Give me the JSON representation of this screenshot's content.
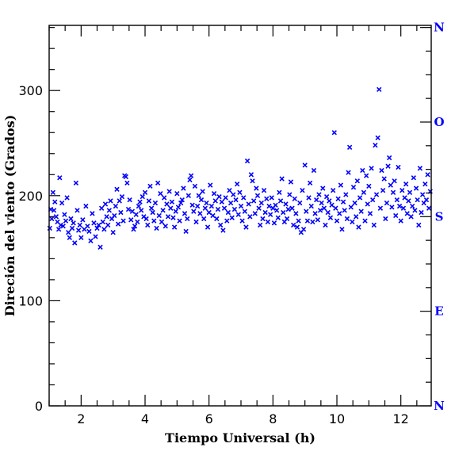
{
  "chart_data": {
    "type": "scatter",
    "xlabel": "Tiempo Universal (h)",
    "ylabel": "Direción del viento (Grados)",
    "xlim": [
      1.0,
      12.95
    ],
    "ylim": [
      0,
      362
    ],
    "x_ticks": [
      2,
      4,
      6,
      8,
      10,
      12
    ],
    "y_ticks": [
      0,
      100,
      200,
      300
    ],
    "right_axis_labels": [
      {
        "label": "N",
        "value": 0
      },
      {
        "label": "E",
        "value": 90
      },
      {
        "label": "S",
        "value": 180
      },
      {
        "label": "O",
        "value": 270
      },
      {
        "label": "N",
        "value": 360
      }
    ],
    "marker": "x",
    "colors": {
      "points": "#0000ff",
      "right_labels": "#0000ff",
      "axes": "#000000"
    },
    "grid": false,
    "series": [
      {
        "points": [
          [
            1.02,
            169
          ],
          [
            1.05,
            187
          ],
          [
            1.08,
            178
          ],
          [
            1.12,
            203
          ],
          [
            1.15,
            186
          ],
          [
            1.18,
            194
          ],
          [
            1.22,
            180
          ],
          [
            1.26,
            175
          ],
          [
            1.3,
            168
          ],
          [
            1.33,
            217
          ],
          [
            1.36,
            172
          ],
          [
            1.4,
            193
          ],
          [
            1.44,
            171
          ],
          [
            1.48,
            182
          ],
          [
            1.52,
            176
          ],
          [
            1.56,
            198
          ],
          [
            1.6,
            165
          ],
          [
            1.64,
            160
          ],
          [
            1.68,
            178
          ],
          [
            1.72,
            169
          ],
          [
            1.76,
            174
          ],
          [
            1.8,
            155
          ],
          [
            1.84,
            212
          ],
          [
            1.88,
            186
          ],
          [
            1.92,
            167
          ],
          [
            1.96,
            172
          ],
          [
            2.0,
            160
          ],
          [
            2.05,
            177
          ],
          [
            2.1,
            168
          ],
          [
            2.15,
            190
          ],
          [
            2.2,
            171
          ],
          [
            2.25,
            166
          ],
          [
            2.3,
            157
          ],
          [
            2.35,
            183
          ],
          [
            2.4,
            174
          ],
          [
            2.45,
            161
          ],
          [
            2.5,
            169
          ],
          [
            2.55,
            172
          ],
          [
            2.6,
            151
          ],
          [
            2.64,
            188
          ],
          [
            2.68,
            175
          ],
          [
            2.72,
            168
          ],
          [
            2.76,
            192
          ],
          [
            2.8,
            180
          ],
          [
            2.84,
            172
          ],
          [
            2.88,
            186
          ],
          [
            2.92,
            195
          ],
          [
            2.96,
            178
          ],
          [
            3.0,
            165
          ],
          [
            3.04,
            181
          ],
          [
            3.08,
            190
          ],
          [
            3.12,
            206
          ],
          [
            3.16,
            173
          ],
          [
            3.2,
            195
          ],
          [
            3.24,
            184
          ],
          [
            3.28,
            199
          ],
          [
            3.32,
            176
          ],
          [
            3.36,
            219
          ],
          [
            3.4,
            218
          ],
          [
            3.44,
            212
          ],
          [
            3.48,
            187
          ],
          [
            3.52,
            196
          ],
          [
            3.56,
            177
          ],
          [
            3.6,
            185
          ],
          [
            3.64,
            168
          ],
          [
            3.68,
            171
          ],
          [
            3.72,
            182
          ],
          [
            3.76,
            175
          ],
          [
            3.8,
            190
          ],
          [
            3.84,
            194
          ],
          [
            3.88,
            186
          ],
          [
            3.92,
            199
          ],
          [
            3.96,
            180
          ],
          [
            4.0,
            203
          ],
          [
            4.04,
            178
          ],
          [
            4.08,
            172
          ],
          [
            4.12,
            195
          ],
          [
            4.16,
            209
          ],
          [
            4.2,
            188
          ],
          [
            4.24,
            184
          ],
          [
            4.28,
            176
          ],
          [
            4.32,
            193
          ],
          [
            4.36,
            169
          ],
          [
            4.4,
            212
          ],
          [
            4.44,
            181
          ],
          [
            4.48,
            202
          ],
          [
            4.52,
            175
          ],
          [
            4.56,
            186
          ],
          [
            4.6,
            198
          ],
          [
            4.64,
            171
          ],
          [
            4.68,
            192
          ],
          [
            4.72,
            180
          ],
          [
            4.76,
            204
          ],
          [
            4.8,
            188
          ],
          [
            4.84,
            194
          ],
          [
            4.88,
            179
          ],
          [
            4.92,
            170
          ],
          [
            4.96,
            185
          ],
          [
            5.0,
            202
          ],
          [
            5.04,
            189
          ],
          [
            5.08,
            176
          ],
          [
            5.12,
            193
          ],
          [
            5.16,
            196
          ],
          [
            5.2,
            207
          ],
          [
            5.24,
            183
          ],
          [
            5.28,
            166
          ],
          [
            5.32,
            178
          ],
          [
            5.36,
            200
          ],
          [
            5.4,
            215
          ],
          [
            5.44,
            219
          ],
          [
            5.48,
            191
          ],
          [
            5.52,
            185
          ],
          [
            5.56,
            209
          ],
          [
            5.6,
            175
          ],
          [
            5.64,
            190
          ],
          [
            5.68,
            200
          ],
          [
            5.72,
            183
          ],
          [
            5.76,
            196
          ],
          [
            5.8,
            204
          ],
          [
            5.84,
            178
          ],
          [
            5.88,
            188
          ],
          [
            5.92,
            193
          ],
          [
            5.96,
            170
          ],
          [
            6.0,
            184
          ],
          [
            6.04,
            210
          ],
          [
            6.08,
            190
          ],
          [
            6.12,
            181
          ],
          [
            6.16,
            202
          ],
          [
            6.2,
            195
          ],
          [
            6.24,
            178
          ],
          [
            6.28,
            187
          ],
          [
            6.32,
            199
          ],
          [
            6.36,
            172
          ],
          [
            6.4,
            194
          ],
          [
            6.44,
            167
          ],
          [
            6.48,
            188
          ],
          [
            6.52,
            198
          ],
          [
            6.56,
            176
          ],
          [
            6.6,
            184
          ],
          [
            6.64,
            205
          ],
          [
            6.68,
            193
          ],
          [
            6.72,
            179
          ],
          [
            6.76,
            201
          ],
          [
            6.8,
            187
          ],
          [
            6.84,
            196
          ],
          [
            6.88,
            211
          ],
          [
            6.92,
            182
          ],
          [
            6.96,
            203
          ],
          [
            7.0,
            190
          ],
          [
            7.04,
            176
          ],
          [
            7.08,
            198
          ],
          [
            7.12,
            185
          ],
          [
            7.16,
            170
          ],
          [
            7.2,
            233
          ],
          [
            7.24,
            192
          ],
          [
            7.28,
            180
          ],
          [
            7.32,
            220
          ],
          [
            7.36,
            214
          ],
          [
            7.4,
            195
          ],
          [
            7.44,
            183
          ],
          [
            7.48,
            207
          ],
          [
            7.52,
            200
          ],
          [
            7.56,
            188
          ],
          [
            7.6,
            172
          ],
          [
            7.64,
            193
          ],
          [
            7.68,
            178
          ],
          [
            7.72,
            205
          ],
          [
            7.76,
            184
          ],
          [
            7.8,
            197
          ],
          [
            7.84,
            175
          ],
          [
            7.88,
            190
          ],
          [
            7.92,
            182
          ],
          [
            7.96,
            198
          ],
          [
            8.0,
            188
          ],
          [
            8.04,
            174
          ],
          [
            8.08,
            191
          ],
          [
            8.12,
            186
          ],
          [
            8.16,
            179
          ],
          [
            8.2,
            203
          ],
          [
            8.24,
            195
          ],
          [
            8.28,
            216
          ],
          [
            8.32,
            184
          ],
          [
            8.36,
            175
          ],
          [
            8.4,
            192
          ],
          [
            8.44,
            178
          ],
          [
            8.48,
            187
          ],
          [
            8.52,
            201
          ],
          [
            8.56,
            213
          ],
          [
            8.6,
            188
          ],
          [
            8.64,
            172
          ],
          [
            8.68,
            197
          ],
          [
            8.72,
            183
          ],
          [
            8.76,
            170
          ],
          [
            8.8,
            176
          ],
          [
            8.84,
            193
          ],
          [
            8.88,
            165
          ],
          [
            8.92,
            205
          ],
          [
            8.96,
            168
          ],
          [
            9.0,
            229
          ],
          [
            9.04,
            185
          ],
          [
            9.08,
            176
          ],
          [
            9.12,
            198
          ],
          [
            9.16,
            212
          ],
          [
            9.2,
            190
          ],
          [
            9.24,
            175
          ],
          [
            9.28,
            224
          ],
          [
            9.32,
            183
          ],
          [
            9.36,
            196
          ],
          [
            9.4,
            177
          ],
          [
            9.44,
            201
          ],
          [
            9.48,
            186
          ],
          [
            9.52,
            193
          ],
          [
            9.56,
            207
          ],
          [
            9.6,
            188
          ],
          [
            9.64,
            172
          ],
          [
            9.68,
            199
          ],
          [
            9.72,
            184
          ],
          [
            9.76,
            195
          ],
          [
            9.8,
            179
          ],
          [
            9.84,
            191
          ],
          [
            9.88,
            205
          ],
          [
            9.92,
            260
          ],
          [
            9.96,
            188
          ],
          [
            10.0,
            176
          ],
          [
            10.04,
            197
          ],
          [
            10.08,
            183
          ],
          [
            10.12,
            210
          ],
          [
            10.16,
            168
          ],
          [
            10.2,
            194
          ],
          [
            10.24,
            186
          ],
          [
            10.28,
            201
          ],
          [
            10.32,
            178
          ],
          [
            10.36,
            222
          ],
          [
            10.4,
            246
          ],
          [
            10.44,
            189
          ],
          [
            10.48,
            175
          ],
          [
            10.52,
            208
          ],
          [
            10.56,
            193
          ],
          [
            10.6,
            180
          ],
          [
            10.64,
            214
          ],
          [
            10.68,
            170
          ],
          [
            10.72,
            198
          ],
          [
            10.76,
            185
          ],
          [
            10.8,
            224
          ],
          [
            10.84,
            203
          ],
          [
            10.88,
            176
          ],
          [
            10.92,
            219
          ],
          [
            10.96,
            192
          ],
          [
            11.0,
            209
          ],
          [
            11.04,
            183
          ],
          [
            11.08,
            226
          ],
          [
            11.12,
            196
          ],
          [
            11.16,
            172
          ],
          [
            11.2,
            248
          ],
          [
            11.24,
            201
          ],
          [
            11.28,
            255
          ],
          [
            11.32,
            301
          ],
          [
            11.36,
            188
          ],
          [
            11.4,
            224
          ],
          [
            11.44,
            205
          ],
          [
            11.48,
            216
          ],
          [
            11.52,
            178
          ],
          [
            11.56,
            193
          ],
          [
            11.6,
            228
          ],
          [
            11.64,
            236
          ],
          [
            11.68,
            210
          ],
          [
            11.72,
            189
          ],
          [
            11.76,
            203
          ],
          [
            11.8,
            214
          ],
          [
            11.84,
            181
          ],
          [
            11.88,
            196
          ],
          [
            11.92,
            227
          ],
          [
            11.96,
            190
          ],
          [
            12.0,
            176
          ],
          [
            12.04,
            205
          ],
          [
            12.08,
            188
          ],
          [
            12.12,
            198
          ],
          [
            12.16,
            211
          ],
          [
            12.2,
            183
          ],
          [
            12.24,
            195
          ],
          [
            12.28,
            203
          ],
          [
            12.32,
            180
          ],
          [
            12.36,
            190
          ],
          [
            12.4,
            217
          ],
          [
            12.44,
            186
          ],
          [
            12.48,
            207
          ],
          [
            12.52,
            196
          ],
          [
            12.56,
            172
          ],
          [
            12.6,
            226
          ],
          [
            12.64,
            184
          ],
          [
            12.68,
            201
          ],
          [
            12.72,
            193
          ],
          [
            12.76,
            211
          ],
          [
            12.8,
            196
          ],
          [
            12.84,
            220
          ],
          [
            12.88,
            188
          ],
          [
            12.92,
            204
          ]
        ]
      }
    ]
  }
}
